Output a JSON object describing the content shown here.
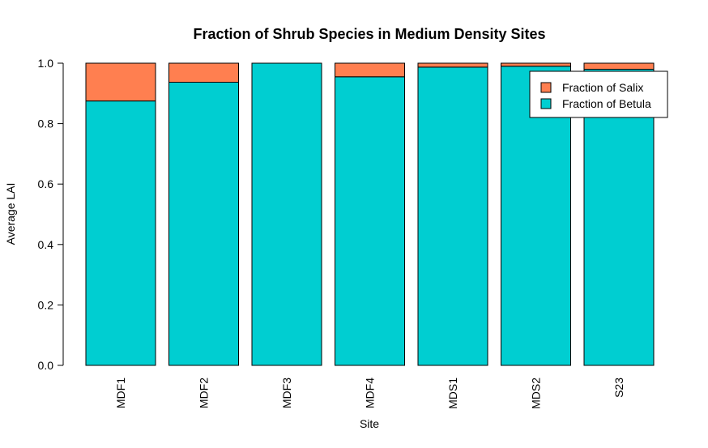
{
  "chart_data": {
    "type": "bar",
    "stacked": true,
    "title": "Fraction of Shrub Species in Medium Density Sites",
    "xlabel": "Site",
    "ylabel": "Average LAI",
    "categories": [
      "MDF1",
      "MDF2",
      "MDF3",
      "MDF4",
      "MDS1",
      "MDS2",
      "S23"
    ],
    "series": [
      {
        "name": "Fraction of Betula",
        "color": "#00CED1",
        "values": [
          0.875,
          0.937,
          1.0,
          0.955,
          0.987,
          0.99,
          0.98
        ]
      },
      {
        "name": "Fraction of Salix",
        "color": "#FF7F50",
        "values": [
          0.125,
          0.063,
          0.0,
          0.045,
          0.013,
          0.01,
          0.02
        ]
      }
    ],
    "ylim": [
      0,
      1
    ],
    "yticks": [
      "0.0",
      "0.2",
      "0.4",
      "0.6",
      "0.8",
      "1.0"
    ],
    "grid": false,
    "legend_position": "top-right",
    "legend_order": [
      "Fraction of Salix",
      "Fraction of Betula"
    ]
  }
}
